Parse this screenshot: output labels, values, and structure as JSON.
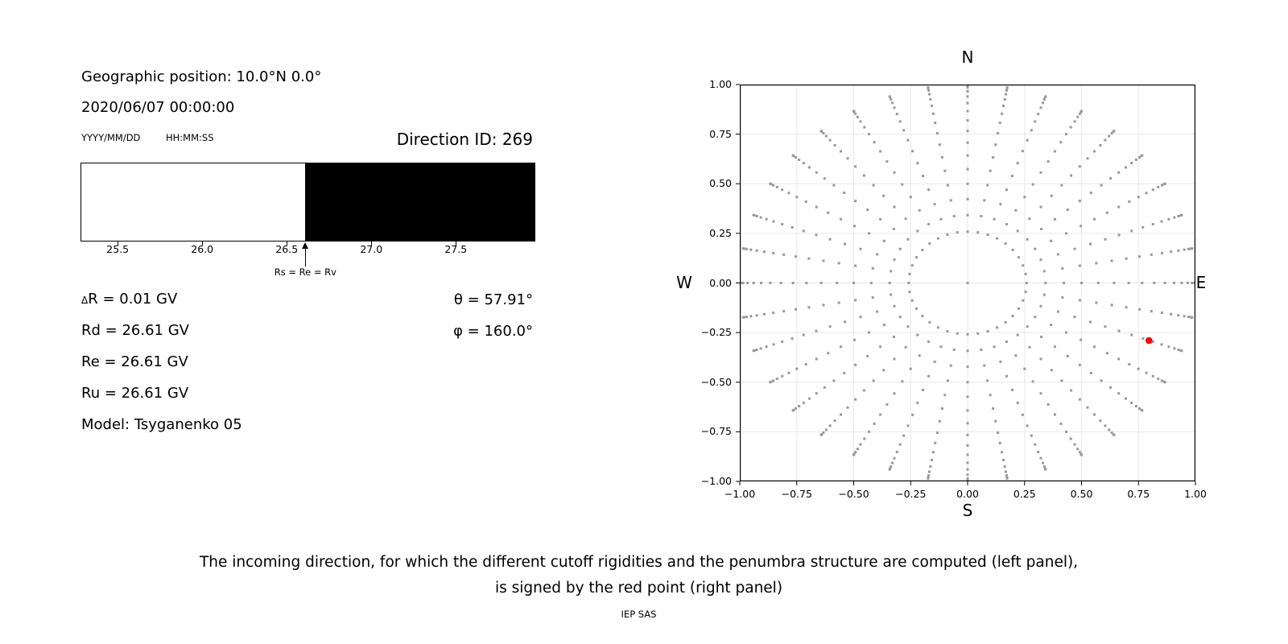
{
  "left_panel": {
    "geographic_position": "Geographic position: 10.0°N 0.0°",
    "datetime": "2020/06/07 00:00:00",
    "date_format_label": "YYYY/MM/DD",
    "time_format_label": "HH:MM:SS",
    "direction_id_label": "Direction ID: 269",
    "values": [
      "ΔR = 0.01 GV",
      "Rd = 26.61 GV",
      "Re = 26.61 GV",
      "Ru = 26.61 GV",
      "Model: Tsyganenko 05"
    ],
    "angles": [
      "θ = 57.91°",
      "φ = 160.0°"
    ]
  },
  "caption": {
    "line1": "The incoming direction, for which the different cutoff rigidities and the penumbra structure are computed (left panel),",
    "line2": "is signed by the red point (right panel)",
    "credit": "IEP SAS"
  },
  "colors": {
    "allowed": "#ffffff",
    "forbidden": "#000000",
    "grid_dot": "#999999",
    "selected": "#ff0000",
    "gridline": "#e9e9e9",
    "axis": "#000000"
  },
  "chart_data": [
    {
      "type": "bar",
      "name": "penumbra-structure",
      "x_range": [
        25.28,
        27.97
      ],
      "xticks": {
        "values": [
          25.5,
          26.0,
          26.5,
          27.0,
          27.5
        ],
        "labels": [
          "25.5",
          "26.0",
          "26.5",
          "27.0",
          "27.5"
        ]
      },
      "segments": [
        {
          "from": 25.28,
          "to": 26.61,
          "color": "#ffffff",
          "meaning": "allowed rigidities"
        },
        {
          "from": 26.61,
          "to": 27.97,
          "color": "#000000",
          "meaning": "forbidden rigidities"
        }
      ],
      "annotation": {
        "x": 26.61,
        "label": "Rs = Re = Rv"
      }
    },
    {
      "type": "scatter",
      "name": "incoming-direction-grid",
      "xlim": [
        -1,
        1
      ],
      "ylim": [
        -1,
        1
      ],
      "grid": true,
      "xticks": {
        "values": [
          -1,
          -0.75,
          -0.5,
          -0.25,
          0,
          0.25,
          0.5,
          0.75,
          1
        ],
        "labels": [
          "−1.00",
          "−0.75",
          "−0.50",
          "−0.25",
          "0.00",
          "0.25",
          "0.50",
          "0.75",
          "1.00"
        ]
      },
      "yticks": {
        "values": [
          1,
          0.75,
          0.5,
          0.25,
          0,
          -0.25,
          -0.5,
          -0.75,
          -1
        ],
        "labels": [
          "1.00",
          "0.75",
          "0.50",
          "0.25",
          "0.00",
          "−0.25",
          "−0.50",
          "−0.75",
          "−1.00"
        ]
      },
      "compass": {
        "top": "N",
        "bottom": "S",
        "left": "W",
        "right": "E"
      },
      "series": [
        {
          "name": "direction-grid",
          "marker": "square",
          "color": "#999999",
          "azimuth_deg": {
            "start": 0,
            "stop": 350,
            "step": 10
          },
          "zenith_deg": {
            "start": 15,
            "stop": 90,
            "step": 5
          },
          "radius_rule": "sin(zenith)",
          "center_point": [
            0,
            0
          ]
        },
        {
          "name": "selected-direction",
          "marker": "circle",
          "color": "#ff0000",
          "points": [
            [
              0.796,
              -0.29
            ]
          ]
        }
      ]
    }
  ]
}
